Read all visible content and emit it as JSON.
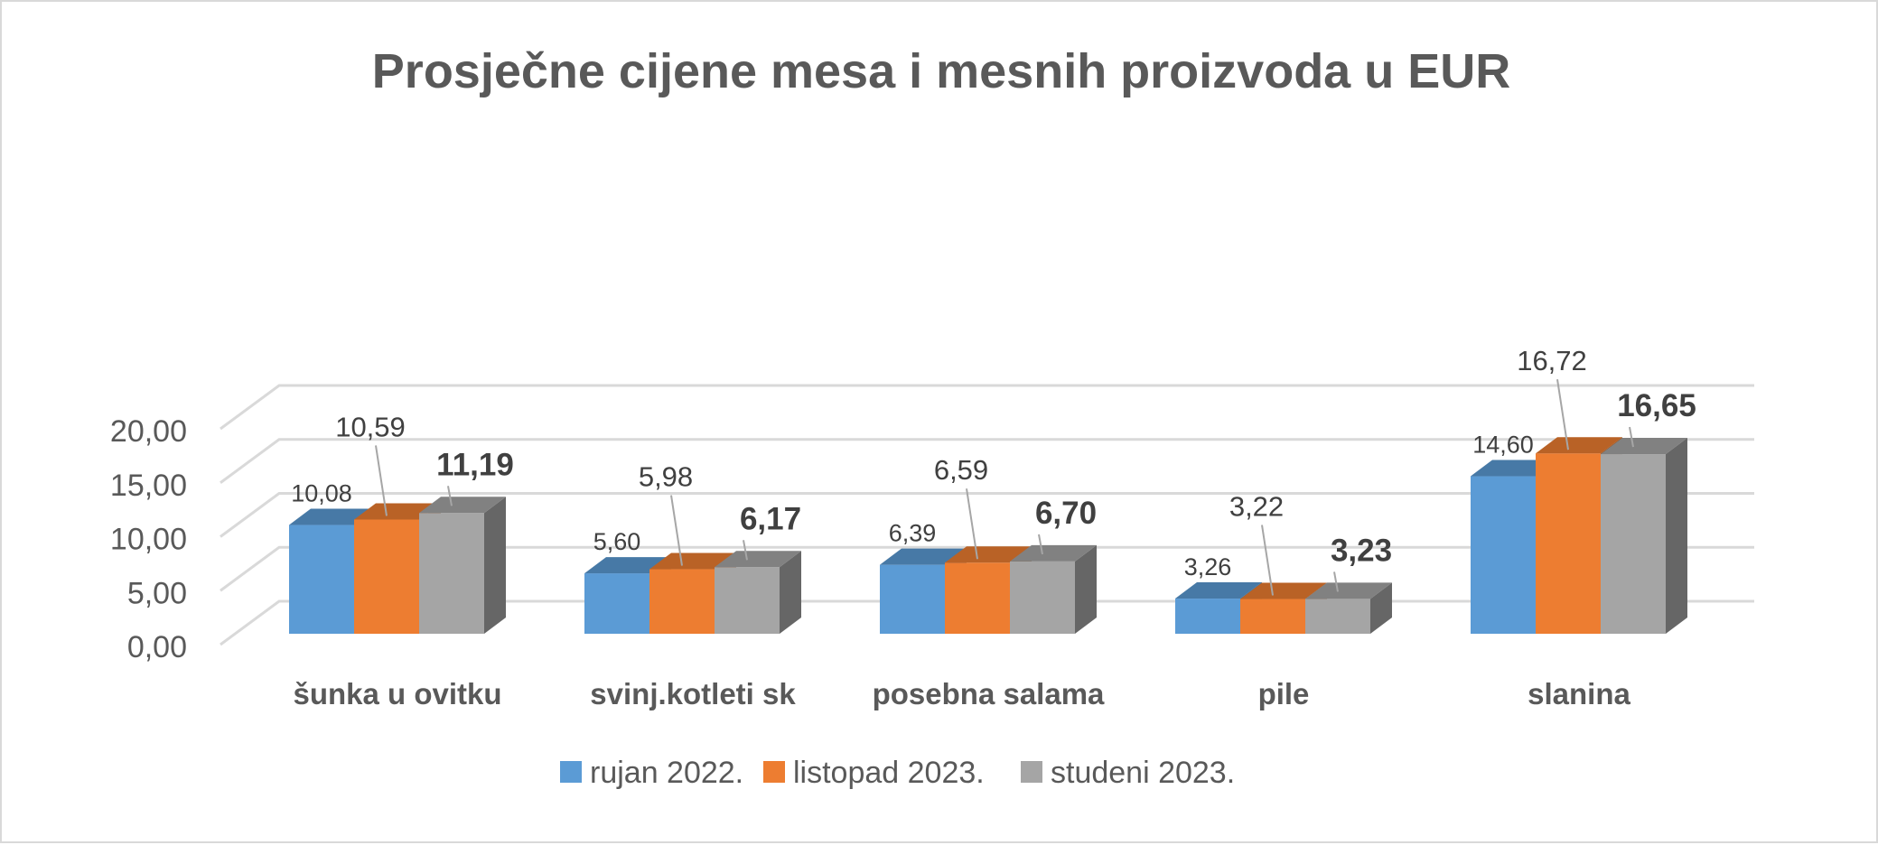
{
  "chart_data": {
    "type": "bar",
    "title": "Prosječne cijene mesa i mesnih proizvoda u EUR",
    "categories": [
      "šunka u ovitku",
      "svinj.kotleti sk",
      "posebna salama",
      "pile",
      "slanina"
    ],
    "series": [
      {
        "name": "rujan 2022.",
        "color": "#5b9bd5",
        "values": [
          10.08,
          5.6,
          6.39,
          3.26,
          14.6
        ],
        "labels": [
          "10,08",
          "5,60",
          "6,39",
          "3,26",
          "14,60"
        ],
        "bold": false
      },
      {
        "name": "listopad 2023.",
        "color": "#ed7d31",
        "values": [
          10.59,
          5.98,
          6.59,
          3.22,
          16.72
        ],
        "labels": [
          "10,59",
          "5,98",
          "6,59",
          "3,22",
          "16,72"
        ],
        "bold": false
      },
      {
        "name": "studeni 2023.",
        "color": "#a5a5a5",
        "values": [
          11.19,
          6.17,
          6.7,
          3.23,
          16.65
        ],
        "labels": [
          "11,19",
          "6,17",
          "6,70",
          "3,23",
          "16,65"
        ],
        "bold": true
      }
    ],
    "yticks": [
      0,
      5,
      10,
      15,
      20
    ],
    "ytick_labels": [
      "0,00",
      "5,00",
      "10,00",
      "15,00",
      "20,00"
    ],
    "ylim": [
      0,
      20
    ],
    "grid": true,
    "legend_position": "bottom",
    "style": "3d-clustered-column"
  }
}
